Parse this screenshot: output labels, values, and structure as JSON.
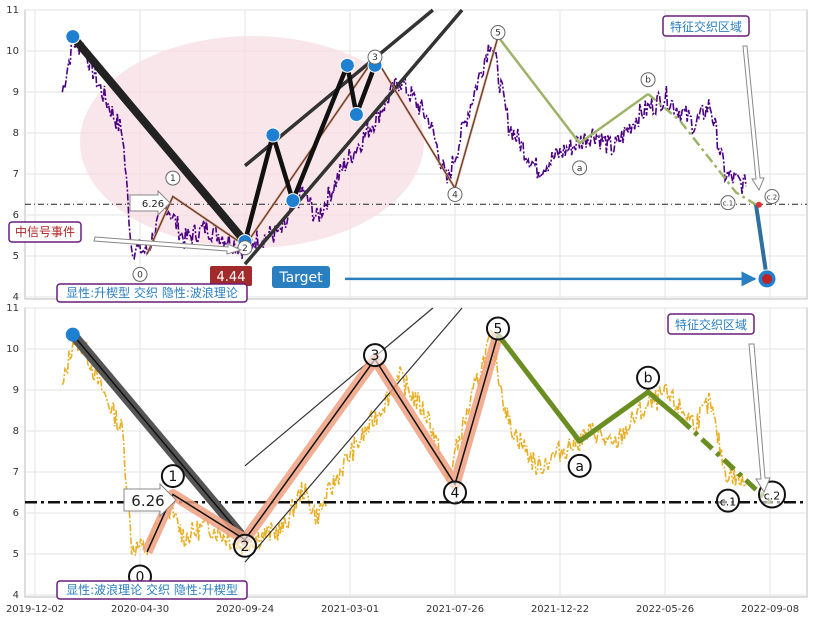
{
  "chart_data": [
    {
      "type": "line",
      "panel": "top",
      "y_ticks": [
        4,
        5,
        6,
        7,
        8,
        9,
        10,
        11
      ],
      "ylim": [
        3.95,
        11.0
      ],
      "x_ticks": [
        "2019-12-02",
        "2020-04-30",
        "2020-09-24",
        "2021-03-01",
        "2021-07-26",
        "2021-12-22",
        "2022-05-26",
        "2022-09-08"
      ],
      "grid": true,
      "colors": {
        "price": "#4b0082",
        "wave": "#222222",
        "channel": "#333333",
        "ellipse": "#f7dde3",
        "abc": "#9eb46a",
        "target_line": "#2a7fc0",
        "node": "#1f7fd0"
      },
      "price_series_anchors": [
        {
          "x": "2020-01-10",
          "y": 9.0
        },
        {
          "x": "2020-01-25",
          "y": 10.2
        },
        {
          "x": "2020-02-10",
          "y": 10.1
        },
        {
          "x": "2020-03-01",
          "y": 9.2
        },
        {
          "x": "2020-04-05",
          "y": 8.0
        },
        {
          "x": "2020-04-18",
          "y": 5.2
        },
        {
          "x": "2020-05-10",
          "y": 5.1
        },
        {
          "x": "2020-06-05",
          "y": 6.3
        },
        {
          "x": "2020-07-01",
          "y": 5.4
        },
        {
          "x": "2020-08-01",
          "y": 5.7
        },
        {
          "x": "2020-09-20",
          "y": 5.2
        },
        {
          "x": "2020-10-10",
          "y": 5.4
        },
        {
          "x": "2020-11-20",
          "y": 5.6
        },
        {
          "x": "2020-12-20",
          "y": 6.6
        },
        {
          "x": "2021-01-10",
          "y": 5.9
        },
        {
          "x": "2021-02-20",
          "y": 7.2
        },
        {
          "x": "2021-03-20",
          "y": 7.9
        },
        {
          "x": "2021-05-10",
          "y": 9.3
        },
        {
          "x": "2021-06-20",
          "y": 8.3
        },
        {
          "x": "2021-07-15",
          "y": 6.8
        },
        {
          "x": "2021-08-10",
          "y": 8.3
        },
        {
          "x": "2021-09-15",
          "y": 10.3
        },
        {
          "x": "2021-10-10",
          "y": 8.2
        },
        {
          "x": "2021-11-20",
          "y": 7.1
        },
        {
          "x": "2021-12-22",
          "y": 7.5
        },
        {
          "x": "2022-02-10",
          "y": 8.0
        },
        {
          "x": "2022-03-10",
          "y": 7.6
        },
        {
          "x": "2022-04-15",
          "y": 8.4
        },
        {
          "x": "2022-05-26",
          "y": 8.9
        },
        {
          "x": "2022-06-25",
          "y": 8.2
        },
        {
          "x": "2022-07-10",
          "y": 8.7
        },
        {
          "x": "2022-07-25",
          "y": 7.0
        },
        {
          "x": "2022-08-15",
          "y": 6.7
        }
      ],
      "wave_points": [
        {
          "x": "2020-01-25",
          "y": 10.35,
          "label": ""
        },
        {
          "x": "2020-09-24",
          "y": 5.35,
          "label": ""
        },
        {
          "x": "2020-11-05",
          "y": 7.95,
          "label": ""
        },
        {
          "x": "2020-12-05",
          "y": 6.35,
          "label": ""
        },
        {
          "x": "2021-02-25",
          "y": 9.65,
          "label": ""
        },
        {
          "x": "2021-03-10",
          "y": 8.45,
          "label": ""
        },
        {
          "x": "2021-04-05",
          "y": 9.65,
          "label": ""
        }
      ],
      "fine_wave": [
        {
          "x": "2020-05-10",
          "y": 5.05,
          "label": "0"
        },
        {
          "x": "2020-06-15",
          "y": 6.45,
          "label": "1"
        },
        {
          "x": "2020-09-24",
          "y": 5.25,
          "label": "2"
        },
        {
          "x": "2021-04-05",
          "y": 9.85,
          "label": "3"
        },
        {
          "x": "2021-07-26",
          "y": 6.65,
          "label": "4"
        },
        {
          "x": "2021-09-25",
          "y": 10.35,
          "label": "5"
        },
        {
          "x": "2022-01-20",
          "y": 7.75,
          "label": "a"
        },
        {
          "x": "2022-05-01",
          "y": 8.95,
          "label": "b"
        },
        {
          "x": "2022-08-05",
          "y": 6.55,
          "label": ""
        },
        {
          "x": "2022-08-25",
          "y": 6.25,
          "label": ""
        }
      ],
      "wave_labels": [
        {
          "text": "0",
          "x": "2020-04-30",
          "y": 4.55
        },
        {
          "text": "1",
          "x": "2020-06-15",
          "y": 6.9
        },
        {
          "text": "2",
          "x": "2020-09-24",
          "y": 5.2
        },
        {
          "text": "3",
          "x": "2021-04-05",
          "y": 9.85
        },
        {
          "text": "4",
          "x": "2021-07-26",
          "y": 6.5
        },
        {
          "text": "5",
          "x": "2021-09-25",
          "y": 10.45
        },
        {
          "text": "a",
          "x": "2022-01-20",
          "y": 7.15
        },
        {
          "text": "b",
          "x": "2022-05-01",
          "y": 9.3
        },
        {
          "text": "c.1",
          "x": "2022-07-28",
          "y": 6.3
        },
        {
          "text": "c.2",
          "x": "2022-09-10",
          "y": 6.45
        }
      ],
      "channel_lines": [
        [
          {
            "x": "2020-09-24",
            "y": 7.2
          },
          {
            "x": "2021-06-25",
            "y": 11.0
          }
        ],
        [
          {
            "x": "2020-09-24",
            "y": 4.8
          },
          {
            "x": "2021-08-05",
            "y": 11.0
          }
        ]
      ],
      "hline": {
        "y": 6.26,
        "label": "6.26"
      },
      "target_value": "4.44",
      "target_label": "Target",
      "badge": "显性:升楔型 交织 隐性:波浪理论",
      "signal_text": "中信号事件",
      "zone_text": "特征交织区域"
    },
    {
      "type": "line",
      "panel": "bottom",
      "y_ticks": [
        4,
        5,
        6,
        7,
        8,
        9,
        10,
        11
      ],
      "ylim": [
        3.95,
        11.0
      ],
      "x_ticks": [
        "2019-12-02",
        "2020-04-30",
        "2020-09-24",
        "2021-03-01",
        "2021-07-26",
        "2021-12-22",
        "2022-05-26",
        "2022-09-08"
      ],
      "grid": true,
      "colors": {
        "price": "#e8b028",
        "wave": "#111111",
        "halo": "#f0a080",
        "abc": "#6b8e23",
        "node": "#1f7fd0"
      },
      "decline": [
        {
          "x": "2020-01-25",
          "y": 10.35
        },
        {
          "x": "2020-09-24",
          "y": 5.35
        }
      ],
      "impulse": [
        {
          "x": "2020-05-10",
          "y": 5.05
        },
        {
          "x": "2020-06-15",
          "y": 6.45
        },
        {
          "x": "2020-09-24",
          "y": 5.35
        },
        {
          "x": "2021-04-05",
          "y": 9.75
        },
        {
          "x": "2021-07-26",
          "y": 6.7
        },
        {
          "x": "2021-09-25",
          "y": 10.35
        }
      ],
      "correction": [
        {
          "x": "2021-09-25",
          "y": 10.35
        },
        {
          "x": "2022-01-20",
          "y": 7.75
        },
        {
          "x": "2022-05-01",
          "y": 8.95
        },
        {
          "x": "2022-06-10",
          "y": 8.3
        }
      ],
      "correction_dashed": [
        {
          "x": "2022-06-10",
          "y": 8.3
        },
        {
          "x": "2022-09-08",
          "y": 6.25
        }
      ],
      "channel_lines": [
        [
          {
            "x": "2020-09-24",
            "y": 7.15
          },
          {
            "x": "2021-06-25",
            "y": 11.0
          }
        ],
        [
          {
            "x": "2020-09-24",
            "y": 4.8
          },
          {
            "x": "2021-08-05",
            "y": 11.0
          }
        ]
      ],
      "wave_labels": [
        {
          "text": "0",
          "x": "2020-04-30",
          "y": 4.45
        },
        {
          "text": "1",
          "x": "2020-06-15",
          "y": 6.9
        },
        {
          "text": "2",
          "x": "2020-09-24",
          "y": 5.2
        },
        {
          "text": "3",
          "x": "2021-04-05",
          "y": 9.85
        },
        {
          "text": "4",
          "x": "2021-07-26",
          "y": 6.5
        },
        {
          "text": "5",
          "x": "2021-09-25",
          "y": 10.5
        },
        {
          "text": "a",
          "x": "2022-01-20",
          "y": 7.15
        },
        {
          "text": "b",
          "x": "2022-05-01",
          "y": 9.3
        },
        {
          "text": "c.1",
          "x": "2022-07-28",
          "y": 6.3
        },
        {
          "text": "c.2",
          "x": "2022-09-10",
          "y": 6.45
        }
      ],
      "hline": {
        "y": 6.26,
        "label": "6.26"
      },
      "badge": "显性:波浪理论 交织 隐性:升楔型",
      "zone_text": "特征交织区域"
    }
  ]
}
